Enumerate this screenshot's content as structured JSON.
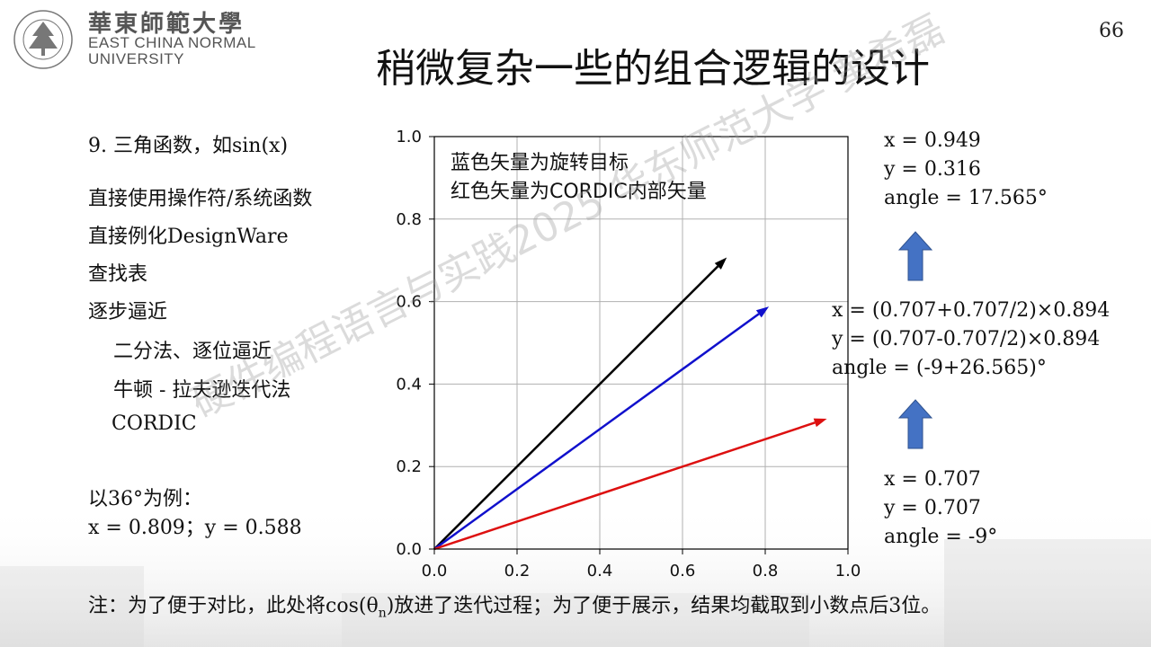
{
  "header": {
    "university_cn": "華東師範大學",
    "university_en_line1": "EAST CHINA NORMAL",
    "university_en_line2": "UNIVERSITY",
    "page_number": "66"
  },
  "title": "稍微复杂一些的组合逻辑的设计",
  "left": {
    "heading": "9. 三角函数，如sin(x)",
    "items": [
      "直接使用操作符/系统函数",
      "直接例化DesignWare",
      "查找表",
      "逐步逼近"
    ],
    "subitems": [
      "二分法、逐位逼近",
      "牛顿 - 拉夫逊迭代法",
      "CORDIC"
    ],
    "example_line1": "以36°为例：",
    "example_line2": "x = 0.809；y = 0.588"
  },
  "chart_data": {
    "type": "line",
    "xlim": [
      0.0,
      1.0
    ],
    "ylim": [
      0.0,
      1.0
    ],
    "xticks": [
      "0.0",
      "0.2",
      "0.4",
      "0.6",
      "0.8",
      "1.0"
    ],
    "yticks": [
      "0.0",
      "0.2",
      "0.4",
      "0.6",
      "0.8",
      "1.0"
    ],
    "grid": true,
    "annotation_lines": [
      "蓝色矢量为旋转目标",
      "红色矢量为CORDIC内部矢量"
    ],
    "series": [
      {
        "color": "#000000",
        "x": [
          0.0,
          0.707
        ],
        "y": [
          0.0,
          0.707
        ]
      },
      {
        "color": "#1010cc",
        "x": [
          0.0,
          0.809
        ],
        "y": [
          0.0,
          0.588
        ]
      },
      {
        "color": "#dd1010",
        "x": [
          0.0,
          0.949
        ],
        "y": [
          0.0,
          0.316
        ]
      }
    ]
  },
  "right": {
    "top": [
      "x = 0.949",
      "y = 0.316",
      "angle = 17.565°"
    ],
    "middle": [
      "x = (0.707+0.707/2)×0.894",
      "y = (0.707-0.707/2)×0.894",
      "angle = (-9+26.565)°"
    ],
    "bottom": [
      "x = 0.707",
      "y = 0.707",
      "angle = -9°"
    ]
  },
  "note": {
    "prefix": "注：为了便于对比，此处将cos(θ",
    "subscript": "n",
    "suffix": ")放进了迭代过程；为了便于展示，结果均截取到小数点后3位。"
  },
  "watermark": "硬件编程语言与实践2025 华东师范大学 黄希磊",
  "colors": {
    "arrow_blue": "#4472C4",
    "black_vector": "#000000",
    "blue_vector": "#1010cc",
    "red_vector": "#dd1010"
  }
}
